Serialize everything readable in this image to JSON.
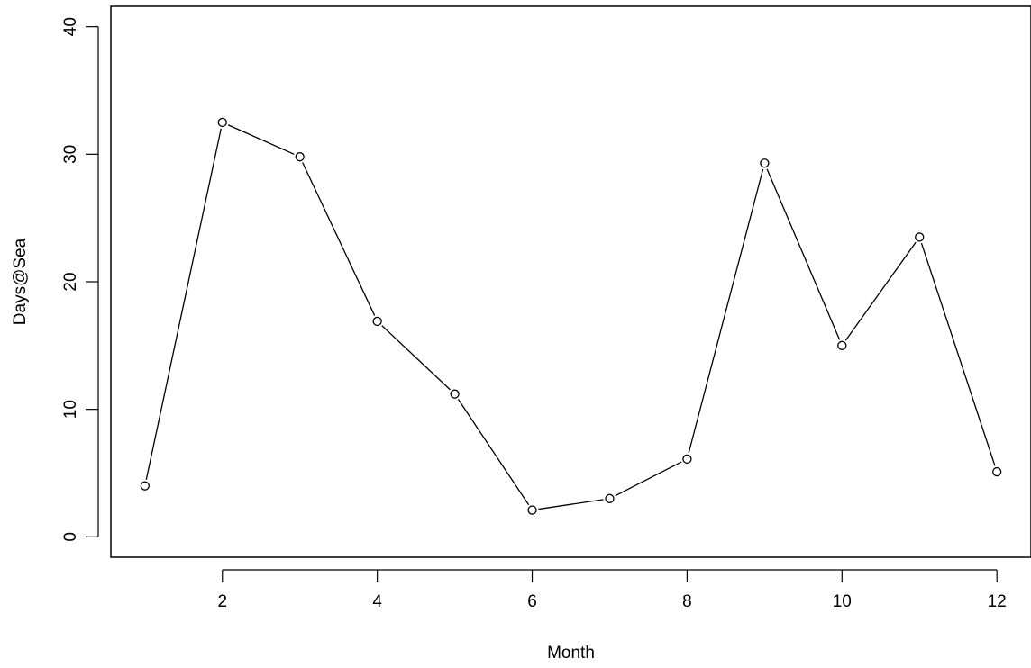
{
  "chart_data": {
    "type": "line",
    "title": "",
    "xlabel": "Month",
    "ylabel": "Days@Sea",
    "xlim": [
      0.56,
      12.44
    ],
    "ylim": [
      -1.6,
      41.6
    ],
    "xticks": [
      2,
      4,
      6,
      8,
      10,
      12
    ],
    "yticks": [
      0,
      10,
      20,
      30,
      40
    ],
    "xtick_labels": [
      "2",
      "4",
      "6",
      "8",
      "10",
      "12"
    ],
    "ytick_labels": [
      "0",
      "10",
      "20",
      "30",
      "40"
    ],
    "grid": false,
    "series": [
      {
        "x": [
          1,
          2,
          3,
          4,
          5,
          6,
          7,
          8,
          9,
          10,
          11,
          12
        ],
        "values": [
          4.0,
          32.5,
          29.8,
          16.9,
          11.2,
          2.1,
          3.0,
          6.1,
          29.3,
          15.0,
          23.5,
          5.1
        ],
        "marker": "open-circle",
        "color": "#000000"
      }
    ]
  }
}
